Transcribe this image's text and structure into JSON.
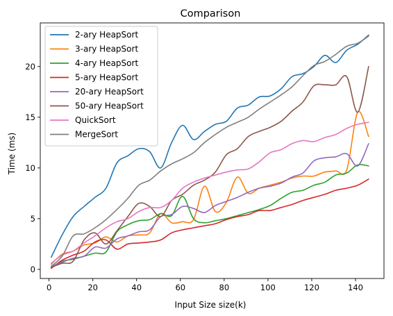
{
  "chart_data": {
    "type": "line",
    "title": "Comparison",
    "xlabel": "Input Size size(k)",
    "ylabel": "Time (ms)",
    "xlim": [
      -4,
      153
    ],
    "ylim": [
      -0.9,
      24.3
    ],
    "xticks": [
      0,
      20,
      40,
      60,
      80,
      100,
      120,
      140
    ],
    "yticks": [
      0,
      5,
      10,
      15,
      20
    ],
    "legend_position": "top-left",
    "grid": false,
    "x": [
      1,
      6,
      11,
      16,
      21,
      26,
      31,
      36,
      41,
      46,
      51,
      56,
      61,
      66,
      71,
      76,
      81,
      86,
      91,
      96,
      101,
      106,
      111,
      116,
      121,
      126,
      131,
      136,
      141,
      146
    ],
    "series": [
      {
        "name": "2-ary HeapSort",
        "color": "#1f77b4",
        "values": [
          1.2,
          3.4,
          5.2,
          6.2,
          7.1,
          8.0,
          10.5,
          11.2,
          11.9,
          11.6,
          10.0,
          12.5,
          14.2,
          12.8,
          13.6,
          14.3,
          14.6,
          15.9,
          16.2,
          17.0,
          17.1,
          17.8,
          19.0,
          19.3,
          20.0,
          21.1,
          20.4,
          21.6,
          22.2,
          23.1
        ]
      },
      {
        "name": "3-ary HeapSort",
        "color": "#ff7f0e",
        "values": [
          0.5,
          1.5,
          1.8,
          2.4,
          2.6,
          3.2,
          2.7,
          3.3,
          3.4,
          3.6,
          5.5,
          4.6,
          4.7,
          4.9,
          8.2,
          5.7,
          6.6,
          9.1,
          7.5,
          8.0,
          8.3,
          8.6,
          9.0,
          9.2,
          9.2,
          9.6,
          9.7,
          9.8,
          15.5,
          13.1
        ]
      },
      {
        "name": "4-ary HeapSort",
        "color": "#2ca02c",
        "values": [
          0.2,
          0.8,
          1.0,
          1.3,
          1.6,
          1.7,
          3.7,
          4.4,
          4.8,
          4.9,
          5.5,
          5.3,
          7.2,
          5.0,
          4.6,
          4.8,
          5.0,
          5.3,
          5.6,
          5.9,
          6.3,
          7.0,
          7.6,
          7.8,
          8.3,
          8.6,
          9.3,
          9.5,
          10.3,
          10.2
        ]
      },
      {
        "name": "5-ary HeapSort",
        "color": "#d62728",
        "values": [
          0.1,
          0.9,
          1.4,
          1.8,
          2.7,
          2.9,
          2.0,
          2.5,
          2.6,
          2.7,
          2.9,
          3.6,
          3.9,
          4.1,
          4.3,
          4.5,
          4.9,
          5.2,
          5.4,
          5.8,
          5.8,
          6.1,
          6.4,
          6.8,
          7.1,
          7.4,
          7.8,
          8.0,
          8.3,
          8.9
        ]
      },
      {
        "name": "20-ary HeapSort",
        "color": "#9467bd",
        "values": [
          0.3,
          0.7,
          1.1,
          1.3,
          2.2,
          2.1,
          3.0,
          3.3,
          3.7,
          3.9,
          5.2,
          5.4,
          6.2,
          6.0,
          5.6,
          6.3,
          6.7,
          7.1,
          7.6,
          8.0,
          8.2,
          8.5,
          9.1,
          9.5,
          10.7,
          11.0,
          11.1,
          11.4,
          10.2,
          12.4
        ]
      },
      {
        "name": "50-ary HeapSort",
        "color": "#8c564b",
        "values": [
          0.2,
          0.6,
          0.8,
          2.9,
          3.6,
          2.5,
          3.8,
          5.2,
          6.5,
          6.2,
          5.2,
          6.8,
          7.4,
          8.3,
          8.8,
          9.6,
          11.3,
          11.9,
          13.1,
          13.6,
          14.0,
          14.6,
          15.6,
          16.5,
          18.1,
          18.2,
          18.2,
          19.0,
          15.5,
          20.0
        ]
      },
      {
        "name": "QuickSort",
        "color": "#e377c2",
        "values": [
          0.6,
          1.4,
          1.8,
          2.6,
          3.3,
          4.1,
          4.7,
          5.0,
          5.7,
          6.1,
          6.1,
          6.8,
          8.0,
          8.6,
          9.0,
          9.3,
          9.6,
          9.8,
          9.9,
          10.6,
          11.5,
          11.8,
          12.4,
          12.7,
          12.6,
          13.0,
          13.3,
          13.9,
          14.3,
          14.5
        ]
      },
      {
        "name": "MergeSort",
        "color": "#7f7f7f",
        "values": [
          0.3,
          1.3,
          3.3,
          3.5,
          4.1,
          4.9,
          5.9,
          7.0,
          8.3,
          8.8,
          9.7,
          10.4,
          10.9,
          11.5,
          12.5,
          13.3,
          14.0,
          14.5,
          15.0,
          15.8,
          16.5,
          17.2,
          18.0,
          19.1,
          20.1,
          20.5,
          21.2,
          22.0,
          22.3,
          23.0
        ]
      }
    ]
  }
}
